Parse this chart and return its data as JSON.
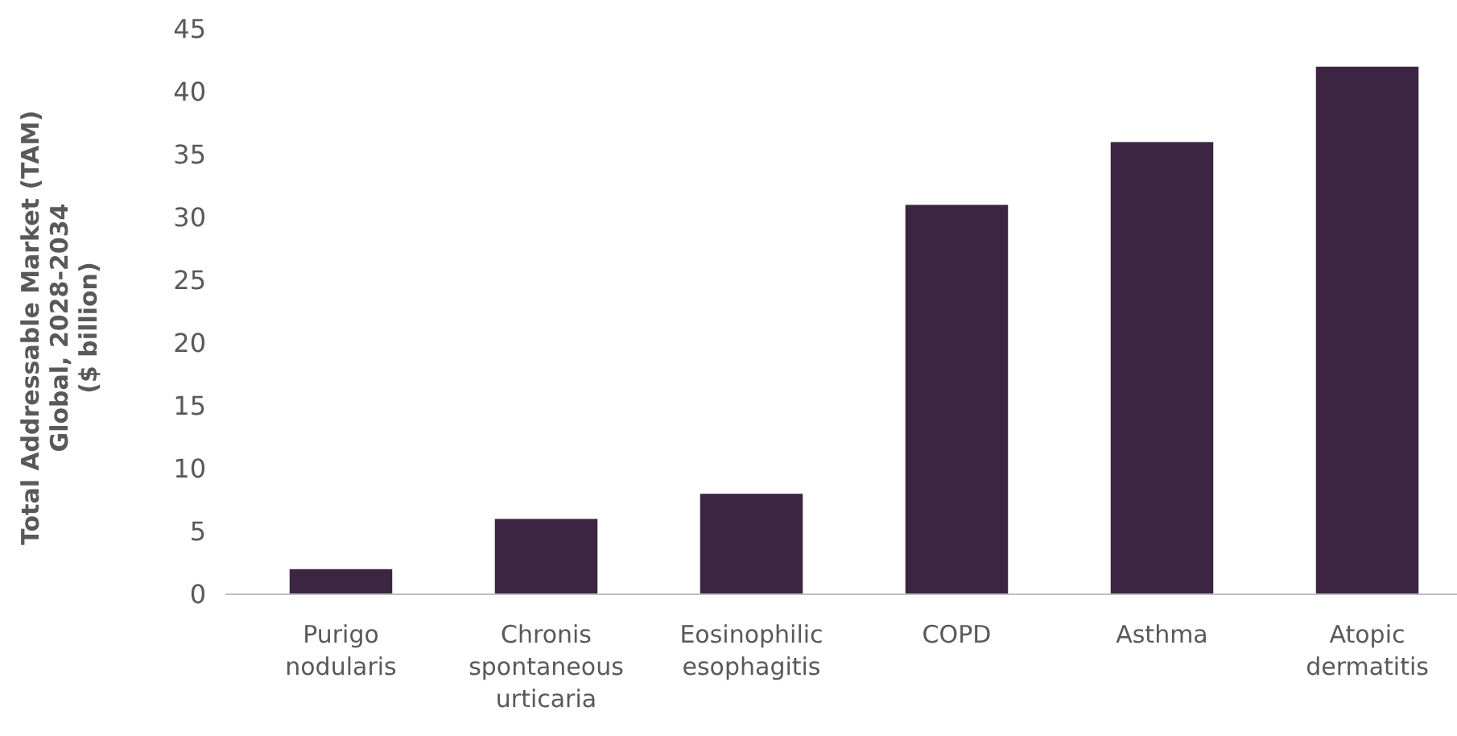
{
  "chart_data": {
    "type": "bar",
    "ylabel": "Total Addressable Market (TAM)\nGlobal, 2028-2034\n($ billion)",
    "categories": [
      "Purigo nodularis",
      "Chronis spontaneous urticaria",
      "Eosinophilic esophagitis",
      "COPD",
      "Asthma",
      "Atopic dermatitis"
    ],
    "values": [
      2,
      6,
      8,
      31,
      36,
      42
    ],
    "color": "#3b2543",
    "ylim": [
      0,
      45
    ],
    "yticks": [
      0,
      5,
      10,
      15,
      20,
      25,
      30,
      35,
      40,
      45
    ],
    "grid": false
  }
}
